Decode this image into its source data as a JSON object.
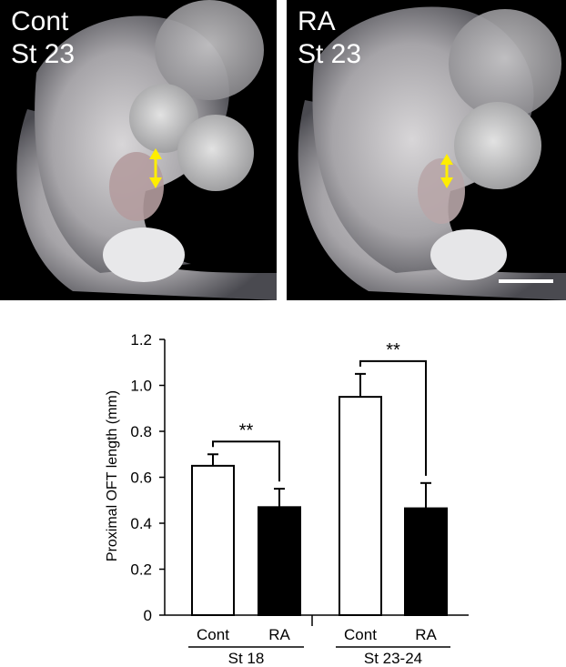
{
  "panels": [
    {
      "condition": "Cont",
      "stage": "St 23"
    },
    {
      "condition": "RA",
      "stage": "St 23"
    }
  ],
  "colors": {
    "arrow": "#ffee00",
    "cont_bar": "#ffffff",
    "ra_bar": "#000000",
    "background": "#000000"
  },
  "icons": [
    "double-arrow-icon",
    "scale-bar-icon"
  ],
  "chart_data": {
    "type": "bar",
    "ylabel": "Proximal OFT length (mm)",
    "ylim": [
      0,
      1.2
    ],
    "yticks": [
      "0",
      "0.2",
      "0.4",
      "0.6",
      "0.8",
      "1.0",
      "1.2"
    ],
    "groups": [
      {
        "label": "St 18",
        "bars": [
          {
            "label": "Cont",
            "value": 0.65,
            "error": 0.05,
            "fill": "white"
          },
          {
            "label": "RA",
            "value": 0.47,
            "error": 0.08,
            "fill": "black"
          }
        ],
        "significance": "**"
      },
      {
        "label": "St 23-24",
        "bars": [
          {
            "label": "Cont",
            "value": 0.95,
            "error": 0.1,
            "fill": "white"
          },
          {
            "label": "RA",
            "value": 0.465,
            "error": 0.11,
            "fill": "black"
          }
        ],
        "significance": "**"
      }
    ]
  }
}
